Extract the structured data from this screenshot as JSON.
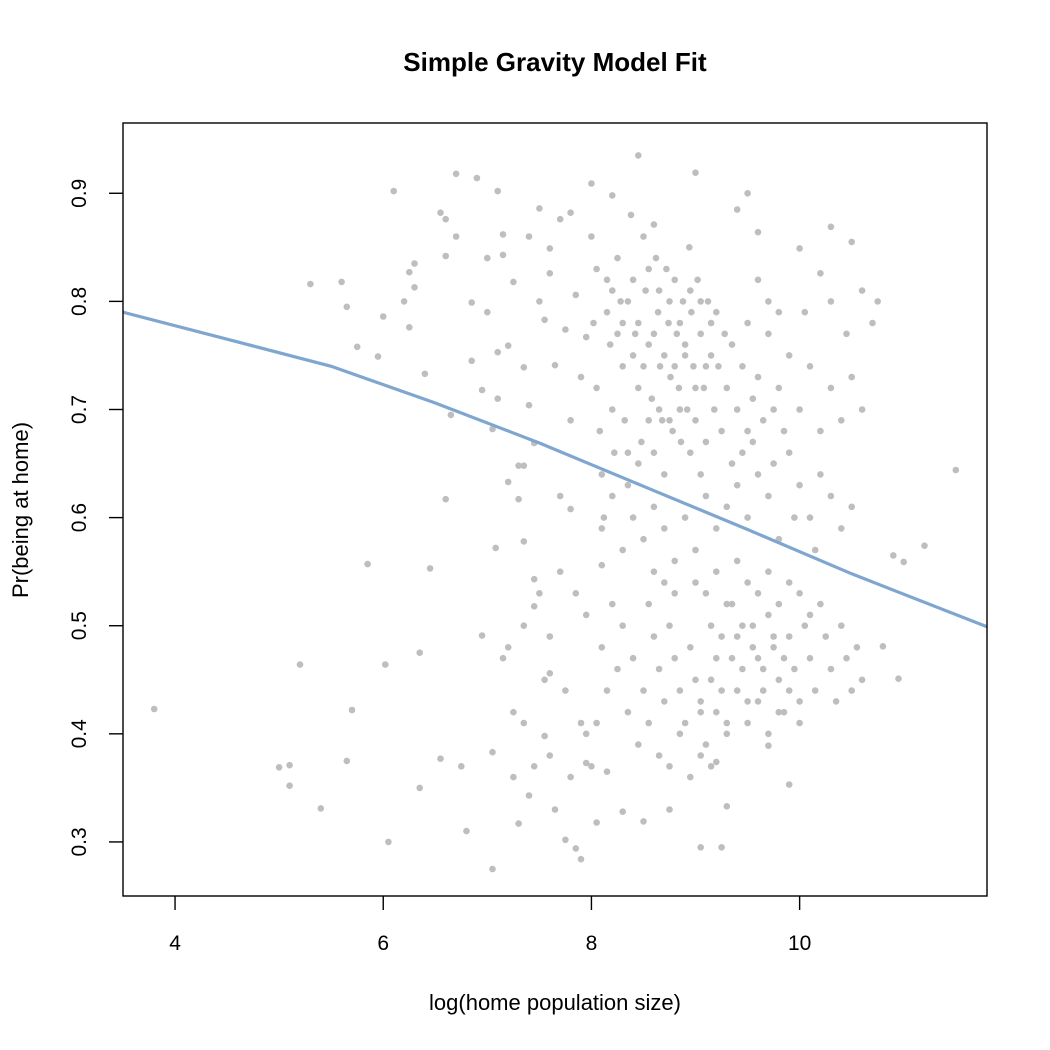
{
  "chart_data": {
    "type": "scatter",
    "title": "Simple Gravity Model Fit",
    "xlabel": "log(home population size)",
    "ylabel": "Pr(being at home)",
    "xlim": [
      3.5,
      11.8
    ],
    "ylim": [
      0.25,
      0.965
    ],
    "xticks": [
      {
        "value": 4,
        "label": "4"
      },
      {
        "value": 6,
        "label": "6"
      },
      {
        "value": 8,
        "label": "8"
      },
      {
        "value": 10,
        "label": "10"
      }
    ],
    "yticks": [
      {
        "value": 0.3,
        "label": "0.3"
      },
      {
        "value": 0.4,
        "label": "0.4"
      },
      {
        "value": 0.5,
        "label": "0.5"
      },
      {
        "value": 0.6,
        "label": "0.6"
      },
      {
        "value": 0.7,
        "label": "0.7"
      },
      {
        "value": 0.8,
        "label": "0.8"
      },
      {
        "value": 0.9,
        "label": "0.9"
      }
    ],
    "grid": false,
    "point_color": "#bebebe",
    "line_color": "#7ea6cf",
    "fit_line": {
      "x": [
        3.5,
        4.5,
        5.5,
        6.5,
        7.5,
        8.5,
        9.5,
        10.5,
        11.8
      ],
      "y": [
        0.79,
        0.765,
        0.74,
        0.706,
        0.669,
        0.629,
        0.589,
        0.548,
        0.499
      ]
    },
    "points": [
      [
        3.8,
        0.423
      ],
      [
        5.0,
        0.369
      ],
      [
        5.1,
        0.371
      ],
      [
        5.1,
        0.352
      ],
      [
        5.2,
        0.464
      ],
      [
        5.3,
        0.816
      ],
      [
        5.4,
        0.331
      ],
      [
        5.6,
        0.818
      ],
      [
        5.65,
        0.795
      ],
      [
        5.65,
        0.375
      ],
      [
        5.7,
        0.422
      ],
      [
        5.75,
        0.758
      ],
      [
        5.85,
        0.557
      ],
      [
        5.95,
        0.749
      ],
      [
        6.0,
        0.786
      ],
      [
        6.02,
        0.464
      ],
      [
        6.05,
        0.3
      ],
      [
        6.1,
        0.902
      ],
      [
        6.2,
        0.8
      ],
      [
        6.25,
        0.776
      ],
      [
        6.3,
        0.835
      ],
      [
        6.35,
        0.475
      ],
      [
        6.35,
        0.35
      ],
      [
        6.4,
        0.733
      ],
      [
        6.45,
        0.553
      ],
      [
        6.55,
        0.377
      ],
      [
        6.6,
        0.617
      ],
      [
        6.6,
        0.876
      ],
      [
        6.7,
        0.918
      ],
      [
        6.75,
        0.37
      ],
      [
        6.8,
        0.31
      ],
      [
        6.85,
        0.745
      ],
      [
        6.9,
        0.914
      ],
      [
        6.95,
        0.491
      ],
      [
        7.0,
        0.84
      ],
      [
        7.05,
        0.275
      ],
      [
        7.05,
        0.383
      ],
      [
        7.08,
        0.572
      ],
      [
        7.1,
        0.902
      ],
      [
        7.15,
        0.843
      ],
      [
        7.2,
        0.48
      ],
      [
        7.25,
        0.36
      ],
      [
        7.3,
        0.317
      ],
      [
        7.35,
        0.578
      ],
      [
        7.4,
        0.343
      ],
      [
        7.45,
        0.543
      ],
      [
        7.5,
        0.886
      ],
      [
        7.55,
        0.398
      ],
      [
        7.6,
        0.456
      ],
      [
        7.7,
        0.876
      ],
      [
        7.75,
        0.302
      ],
      [
        7.8,
        0.608
      ],
      [
        7.85,
        0.294
      ],
      [
        7.9,
        0.284
      ],
      [
        7.95,
        0.373
      ],
      [
        8.0,
        0.909
      ],
      [
        8.05,
        0.318
      ],
      [
        8.1,
        0.556
      ],
      [
        8.15,
        0.365
      ],
      [
        8.2,
        0.898
      ],
      [
        8.3,
        0.328
      ],
      [
        8.45,
        0.935
      ],
      [
        8.5,
        0.319
      ],
      [
        8.6,
        0.871
      ],
      [
        8.75,
        0.33
      ],
      [
        9.0,
        0.919
      ],
      [
        9.05,
        0.295
      ],
      [
        9.2,
        0.374
      ],
      [
        9.25,
        0.295
      ],
      [
        9.3,
        0.333
      ],
      [
        9.4,
        0.885
      ],
      [
        9.5,
        0.9
      ],
      [
        9.6,
        0.864
      ],
      [
        9.7,
        0.389
      ],
      [
        9.9,
        0.353
      ],
      [
        10.0,
        0.849
      ],
      [
        10.2,
        0.826
      ],
      [
        10.3,
        0.869
      ],
      [
        10.5,
        0.855
      ],
      [
        10.6,
        0.81
      ],
      [
        10.75,
        0.8
      ],
      [
        10.8,
        0.481
      ],
      [
        10.9,
        0.565
      ],
      [
        10.95,
        0.451
      ],
      [
        11.0,
        0.559
      ],
      [
        11.2,
        0.574
      ],
      [
        11.5,
        0.644
      ],
      [
        6.25,
        0.827
      ],
      [
        6.3,
        0.813
      ],
      [
        6.55,
        0.882
      ],
      [
        6.6,
        0.842
      ],
      [
        6.65,
        0.695
      ],
      [
        6.7,
        0.86
      ],
      [
        6.85,
        0.799
      ],
      [
        7.0,
        0.79
      ],
      [
        7.1,
        0.753
      ],
      [
        7.2,
        0.759
      ],
      [
        7.25,
        0.818
      ],
      [
        7.3,
        0.648
      ],
      [
        7.35,
        0.739
      ],
      [
        7.4,
        0.704
      ],
      [
        7.45,
        0.669
      ],
      [
        7.5,
        0.8
      ],
      [
        7.55,
        0.783
      ],
      [
        7.6,
        0.849
      ],
      [
        7.65,
        0.741
      ],
      [
        7.7,
        0.62
      ],
      [
        7.75,
        0.774
      ],
      [
        7.8,
        0.69
      ],
      [
        7.85,
        0.806
      ],
      [
        7.9,
        0.73
      ],
      [
        7.95,
        0.767
      ],
      [
        7.2,
        0.633
      ],
      [
        7.3,
        0.617
      ],
      [
        7.35,
        0.648
      ],
      [
        7.05,
        0.682
      ],
      [
        6.95,
        0.718
      ],
      [
        7.15,
        0.862
      ],
      [
        7.4,
        0.86
      ],
      [
        7.6,
        0.826
      ],
      [
        7.8,
        0.882
      ],
      [
        7.1,
        0.71
      ],
      [
        7.35,
        0.5
      ],
      [
        7.45,
        0.518
      ],
      [
        7.5,
        0.53
      ],
      [
        7.6,
        0.49
      ],
      [
        7.7,
        0.55
      ],
      [
        7.85,
        0.53
      ],
      [
        7.95,
        0.51
      ],
      [
        7.55,
        0.45
      ],
      [
        7.75,
        0.44
      ],
      [
        7.9,
        0.41
      ],
      [
        7.35,
        0.41
      ],
      [
        7.6,
        0.38
      ],
      [
        7.8,
        0.36
      ],
      [
        7.45,
        0.37
      ],
      [
        7.95,
        0.4
      ],
      [
        7.65,
        0.33
      ],
      [
        7.25,
        0.42
      ],
      [
        7.15,
        0.47
      ],
      [
        8.0,
        0.86
      ],
      [
        8.02,
        0.78
      ],
      [
        8.05,
        0.72
      ],
      [
        8.08,
        0.68
      ],
      [
        8.1,
        0.64
      ],
      [
        8.12,
        0.6
      ],
      [
        8.15,
        0.82
      ],
      [
        8.18,
        0.76
      ],
      [
        8.2,
        0.7
      ],
      [
        8.22,
        0.66
      ],
      [
        8.25,
        0.84
      ],
      [
        8.28,
        0.8
      ],
      [
        8.3,
        0.74
      ],
      [
        8.32,
        0.69
      ],
      [
        8.35,
        0.63
      ],
      [
        8.38,
        0.88
      ],
      [
        8.4,
        0.82
      ],
      [
        8.42,
        0.77
      ],
      [
        8.45,
        0.72
      ],
      [
        8.48,
        0.67
      ],
      [
        8.5,
        0.86
      ],
      [
        8.52,
        0.81
      ],
      [
        8.55,
        0.76
      ],
      [
        8.58,
        0.71
      ],
      [
        8.6,
        0.66
      ],
      [
        8.62,
        0.84
      ],
      [
        8.64,
        0.79
      ],
      [
        8.66,
        0.74
      ],
      [
        8.68,
        0.69
      ],
      [
        8.7,
        0.64
      ],
      [
        8.72,
        0.83
      ],
      [
        8.74,
        0.78
      ],
      [
        8.76,
        0.73
      ],
      [
        8.78,
        0.68
      ],
      [
        8.8,
        0.82
      ],
      [
        8.82,
        0.77
      ],
      [
        8.84,
        0.72
      ],
      [
        8.86,
        0.67
      ],
      [
        8.88,
        0.8
      ],
      [
        8.9,
        0.75
      ],
      [
        8.92,
        0.7
      ],
      [
        8.94,
        0.85
      ],
      [
        8.96,
        0.79
      ],
      [
        8.98,
        0.74
      ],
      [
        9.0,
        0.69
      ],
      [
        9.02,
        0.82
      ],
      [
        9.05,
        0.77
      ],
      [
        9.08,
        0.72
      ],
      [
        9.1,
        0.67
      ],
      [
        9.12,
        0.8
      ],
      [
        9.15,
        0.75
      ],
      [
        9.18,
        0.7
      ],
      [
        9.2,
        0.79
      ],
      [
        9.22,
        0.74
      ],
      [
        9.25,
        0.68
      ],
      [
        9.28,
        0.77
      ],
      [
        9.3,
        0.72
      ],
      [
        9.35,
        0.76
      ],
      [
        9.4,
        0.7
      ],
      [
        9.45,
        0.74
      ],
      [
        9.5,
        0.68
      ],
      [
        8.05,
        0.83
      ],
      [
        8.15,
        0.79
      ],
      [
        8.25,
        0.77
      ],
      [
        8.35,
        0.8
      ],
      [
        8.45,
        0.78
      ],
      [
        8.55,
        0.83
      ],
      [
        8.65,
        0.81
      ],
      [
        8.75,
        0.8
      ],
      [
        8.85,
        0.78
      ],
      [
        8.95,
        0.81
      ],
      [
        9.05,
        0.8
      ],
      [
        9.15,
        0.78
      ],
      [
        8.6,
        0.77
      ],
      [
        8.7,
        0.75
      ],
      [
        8.8,
        0.74
      ],
      [
        8.9,
        0.76
      ],
      [
        8.5,
        0.74
      ],
      [
        8.4,
        0.75
      ],
      [
        8.3,
        0.78
      ],
      [
        8.2,
        0.81
      ],
      [
        9.0,
        0.72
      ],
      [
        9.1,
        0.74
      ],
      [
        8.65,
        0.7
      ],
      [
        8.75,
        0.69
      ],
      [
        8.85,
        0.7
      ],
      [
        8.55,
        0.69
      ],
      [
        8.45,
        0.65
      ],
      [
        8.35,
        0.66
      ],
      [
        8.95,
        0.66
      ],
      [
        9.05,
        0.64
      ],
      [
        8.1,
        0.59
      ],
      [
        8.2,
        0.62
      ],
      [
        8.3,
        0.57
      ],
      [
        8.4,
        0.6
      ],
      [
        8.5,
        0.58
      ],
      [
        8.6,
        0.61
      ],
      [
        8.7,
        0.59
      ],
      [
        8.8,
        0.56
      ],
      [
        8.9,
        0.6
      ],
      [
        9.0,
        0.57
      ],
      [
        9.1,
        0.62
      ],
      [
        9.2,
        0.59
      ],
      [
        9.3,
        0.61
      ],
      [
        9.4,
        0.63
      ],
      [
        9.5,
        0.6
      ],
      [
        9.6,
        0.64
      ],
      [
        9.7,
        0.62
      ],
      [
        9.8,
        0.58
      ],
      [
        9.9,
        0.66
      ],
      [
        10.0,
        0.63
      ],
      [
        10.1,
        0.6
      ],
      [
        10.2,
        0.64
      ],
      [
        10.3,
        0.62
      ],
      [
        10.4,
        0.59
      ],
      [
        10.5,
        0.61
      ],
      [
        9.35,
        0.65
      ],
      [
        9.55,
        0.67
      ],
      [
        9.75,
        0.65
      ],
      [
        9.95,
        0.6
      ],
      [
        10.15,
        0.57
      ],
      [
        9.5,
        0.78
      ],
      [
        9.6,
        0.73
      ],
      [
        9.7,
        0.77
      ],
      [
        9.8,
        0.72
      ],
      [
        9.9,
        0.75
      ],
      [
        10.0,
        0.7
      ],
      [
        10.1,
        0.74
      ],
      [
        10.2,
        0.68
      ],
      [
        10.3,
        0.72
      ],
      [
        10.4,
        0.69
      ],
      [
        10.5,
        0.73
      ],
      [
        10.6,
        0.7
      ],
      [
        9.55,
        0.71
      ],
      [
        9.65,
        0.69
      ],
      [
        9.75,
        0.7
      ],
      [
        9.85,
        0.68
      ],
      [
        9.45,
        0.66
      ],
      [
        9.6,
        0.82
      ],
      [
        9.7,
        0.8
      ],
      [
        9.8,
        0.79
      ],
      [
        10.05,
        0.79
      ],
      [
        10.3,
        0.8
      ],
      [
        10.45,
        0.77
      ],
      [
        10.7,
        0.78
      ],
      [
        8.55,
        0.52
      ],
      [
        8.6,
        0.49
      ],
      [
        8.65,
        0.46
      ],
      [
        8.7,
        0.43
      ],
      [
        8.75,
        0.5
      ],
      [
        8.8,
        0.47
      ],
      [
        8.85,
        0.44
      ],
      [
        8.9,
        0.41
      ],
      [
        8.95,
        0.48
      ],
      [
        9.0,
        0.45
      ],
      [
        9.05,
        0.42
      ],
      [
        9.1,
        0.39
      ],
      [
        9.15,
        0.5
      ],
      [
        9.2,
        0.47
      ],
      [
        9.25,
        0.44
      ],
      [
        9.3,
        0.41
      ],
      [
        9.35,
        0.52
      ],
      [
        9.4,
        0.49
      ],
      [
        9.45,
        0.46
      ],
      [
        9.5,
        0.43
      ],
      [
        9.55,
        0.5
      ],
      [
        9.6,
        0.47
      ],
      [
        9.65,
        0.44
      ],
      [
        9.7,
        0.51
      ],
      [
        9.75,
        0.48
      ],
      [
        9.8,
        0.45
      ],
      [
        9.85,
        0.42
      ],
      [
        9.9,
        0.49
      ],
      [
        9.95,
        0.46
      ],
      [
        10.0,
        0.43
      ],
      [
        10.05,
        0.5
      ],
      [
        10.1,
        0.47
      ],
      [
        10.15,
        0.44
      ],
      [
        10.2,
        0.52
      ],
      [
        10.25,
        0.49
      ],
      [
        10.3,
        0.46
      ],
      [
        10.35,
        0.43
      ],
      [
        10.4,
        0.5
      ],
      [
        10.45,
        0.47
      ],
      [
        10.5,
        0.44
      ],
      [
        10.55,
        0.48
      ],
      [
        10.6,
        0.45
      ],
      [
        9.0,
        0.54
      ],
      [
        9.1,
        0.53
      ],
      [
        9.2,
        0.55
      ],
      [
        9.3,
        0.52
      ],
      [
        9.4,
        0.56
      ],
      [
        9.5,
        0.54
      ],
      [
        9.6,
        0.53
      ],
      [
        9.7,
        0.55
      ],
      [
        9.8,
        0.52
      ],
      [
        9.9,
        0.54
      ],
      [
        10.0,
        0.53
      ],
      [
        10.1,
        0.51
      ],
      [
        9.25,
        0.49
      ],
      [
        9.35,
        0.47
      ],
      [
        9.45,
        0.5
      ],
      [
        9.55,
        0.48
      ],
      [
        9.65,
        0.46
      ],
      [
        9.75,
        0.49
      ],
      [
        9.85,
        0.47
      ],
      [
        9.15,
        0.45
      ],
      [
        9.05,
        0.43
      ],
      [
        9.2,
        0.42
      ],
      [
        9.3,
        0.4
      ],
      [
        9.4,
        0.44
      ],
      [
        9.5,
        0.41
      ],
      [
        9.6,
        0.43
      ],
      [
        9.7,
        0.4
      ],
      [
        9.8,
        0.42
      ],
      [
        9.9,
        0.44
      ],
      [
        10.0,
        0.41
      ],
      [
        8.3,
        0.5
      ],
      [
        8.4,
        0.47
      ],
      [
        8.5,
        0.44
      ],
      [
        8.2,
        0.52
      ],
      [
        8.25,
        0.46
      ],
      [
        8.35,
        0.42
      ],
      [
        8.45,
        0.39
      ],
      [
        8.15,
        0.44
      ],
      [
        8.55,
        0.41
      ],
      [
        8.65,
        0.38
      ],
      [
        8.75,
        0.37
      ],
      [
        8.85,
        0.4
      ],
      [
        8.95,
        0.36
      ],
      [
        9.05,
        0.38
      ],
      [
        9.15,
        0.37
      ],
      [
        8.1,
        0.48
      ],
      [
        8.05,
        0.41
      ],
      [
        8.0,
        0.37
      ],
      [
        8.6,
        0.55
      ],
      [
        8.7,
        0.54
      ],
      [
        8.8,
        0.53
      ]
    ]
  }
}
